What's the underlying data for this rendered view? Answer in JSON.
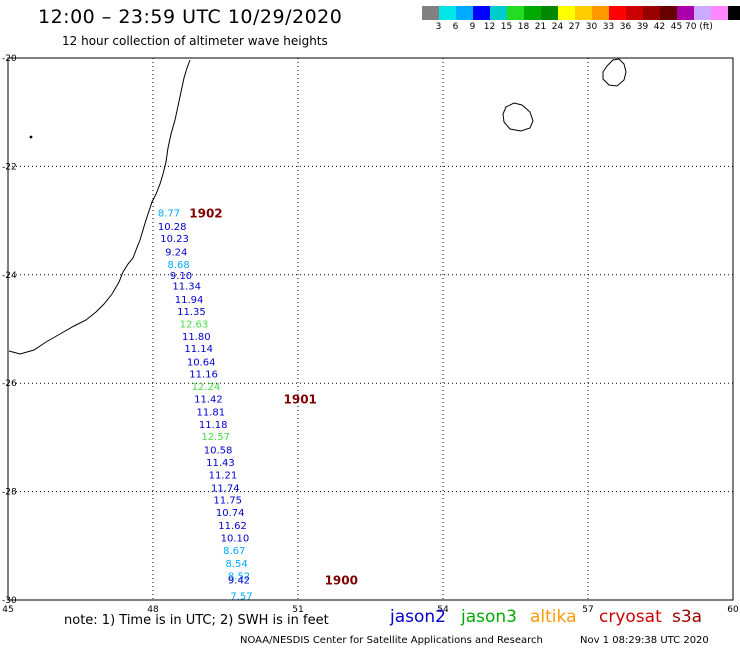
{
  "header": {
    "title": "12:00 – 23:59 UTC 10/29/2020",
    "subtitle": "12 hour collection of altimeter wave heights"
  },
  "legend": {
    "colors": [
      "#808080",
      "#00e5e5",
      "#00aaff",
      "#0000ff",
      "#00cccc",
      "#22dd22",
      "#00aa00",
      "#008800",
      "#ffff00",
      "#ffcc00",
      "#ff9900",
      "#ff0000",
      "#cc0000",
      "#990000",
      "#660000",
      "#aa00aa",
      "#ccaaff",
      "#ff88ff",
      "#000000"
    ],
    "labels": [
      "3",
      "6",
      "9",
      "12",
      "15",
      "18",
      "21",
      "24",
      "27",
      "30",
      "33",
      "36",
      "39",
      "42",
      "45",
      "70 (ft)"
    ]
  },
  "map": {
    "x_ticks": [
      "45",
      "48",
      "51",
      "54",
      "57",
      "60"
    ],
    "y_ticks": [
      "-20",
      "-22",
      "-24",
      "-26",
      "-28",
      "-30"
    ],
    "lon_range": [
      45,
      60
    ],
    "lat_range": [
      -20,
      -30
    ]
  },
  "track": {
    "points": [
      {
        "lon": 48.1,
        "lat": -22.85,
        "swh": "8.77",
        "color": "#00aaff"
      },
      {
        "lon": 48.1,
        "lat": -23.1,
        "swh": "10.28",
        "color": "#0000cc"
      },
      {
        "lon": 48.15,
        "lat": -23.32,
        "swh": "10.23",
        "color": "#0000cc"
      },
      {
        "lon": 48.25,
        "lat": -23.57,
        "swh": "9.24",
        "color": "#0000cc"
      },
      {
        "lon": 48.3,
        "lat": -23.8,
        "swh": "8.68",
        "color": "#00aaff"
      },
      {
        "lon": 48.35,
        "lat": -24.0,
        "swh": "9.10",
        "color": "#0000cc"
      },
      {
        "lon": 48.4,
        "lat": -24.2,
        "swh": "11.34",
        "color": "#0000cc"
      },
      {
        "lon": 48.45,
        "lat": -24.45,
        "swh": "11.94",
        "color": "#0000cc"
      },
      {
        "lon": 48.5,
        "lat": -24.67,
        "swh": "11.35",
        "color": "#0000cc"
      },
      {
        "lon": 48.55,
        "lat": -24.9,
        "swh": "12.63",
        "color": "#44dd44"
      },
      {
        "lon": 48.6,
        "lat": -25.13,
        "swh": "11.80",
        "color": "#0000cc"
      },
      {
        "lon": 48.65,
        "lat": -25.35,
        "swh": "11.14",
        "color": "#0000cc"
      },
      {
        "lon": 48.7,
        "lat": -25.6,
        "swh": "10.64",
        "color": "#0000cc"
      },
      {
        "lon": 48.75,
        "lat": -25.82,
        "swh": "11.16",
        "color": "#0000cc"
      },
      {
        "lon": 48.8,
        "lat": -26.05,
        "swh": "12.24",
        "color": "#44dd44"
      },
      {
        "lon": 48.85,
        "lat": -26.28,
        "swh": "11.42",
        "color": "#0000cc"
      },
      {
        "lon": 48.9,
        "lat": -26.52,
        "swh": "11.81",
        "color": "#0000cc"
      },
      {
        "lon": 48.95,
        "lat": -26.75,
        "swh": "11.18",
        "color": "#0000cc"
      },
      {
        "lon": 49.0,
        "lat": -26.97,
        "swh": "12.57",
        "color": "#44dd44"
      },
      {
        "lon": 49.05,
        "lat": -27.22,
        "swh": "10.58",
        "color": "#0000cc"
      },
      {
        "lon": 49.1,
        "lat": -27.45,
        "swh": "11.43",
        "color": "#0000cc"
      },
      {
        "lon": 49.15,
        "lat": -27.68,
        "swh": "11.21",
        "color": "#0000cc"
      },
      {
        "lon": 49.2,
        "lat": -27.92,
        "swh": "11.74",
        "color": "#0000cc"
      },
      {
        "lon": 49.25,
        "lat": -28.15,
        "swh": "11.75",
        "color": "#0000cc"
      },
      {
        "lon": 49.3,
        "lat": -28.38,
        "swh": "10.74",
        "color": "#0000cc"
      },
      {
        "lon": 49.35,
        "lat": -28.62,
        "swh": "11.62",
        "color": "#0000cc"
      },
      {
        "lon": 49.4,
        "lat": -28.85,
        "swh": "10.10",
        "color": "#0000cc"
      },
      {
        "lon": 49.45,
        "lat": -29.08,
        "swh": "8.67",
        "color": "#00aaff"
      },
      {
        "lon": 49.5,
        "lat": -29.32,
        "swh": "8.54",
        "color": "#00aaff"
      },
      {
        "lon": 49.55,
        "lat": -29.55,
        "swh": "8.52",
        "color": "#00aaff"
      },
      {
        "lon": 49.55,
        "lat": -29.62,
        "swh": "9.42",
        "color": "#0000cc"
      },
      {
        "lon": 49.6,
        "lat": -29.92,
        "swh": "7.57",
        "color": "#00aaff"
      }
    ],
    "time_labels": [
      {
        "lon": 48.75,
        "lat": -22.85,
        "text": "1902",
        "color": "#800000"
      },
      {
        "lon": 50.7,
        "lat": -26.28,
        "text": "1901",
        "color": "#800000"
      },
      {
        "lon": 51.55,
        "lat": -29.62,
        "text": "1900",
        "color": "#800000"
      }
    ]
  },
  "footer": {
    "note": "note: 1) Time is in UTC; 2) SWH is in feet",
    "satellites": [
      {
        "name": "jason2",
        "color": "#0000cc"
      },
      {
        "name": "jason3",
        "color": "#00aa00"
      },
      {
        "name": "altika",
        "color": "#ff9900"
      },
      {
        "name": "cryosat",
        "color": "#cc0000"
      },
      {
        "name": "s3a",
        "color": "#990000"
      }
    ],
    "credit": "NOAA/NESDIS Center for Satellite Applications and Research",
    "timestamp": "Nov  1 08:29:38 UTC 2020"
  }
}
